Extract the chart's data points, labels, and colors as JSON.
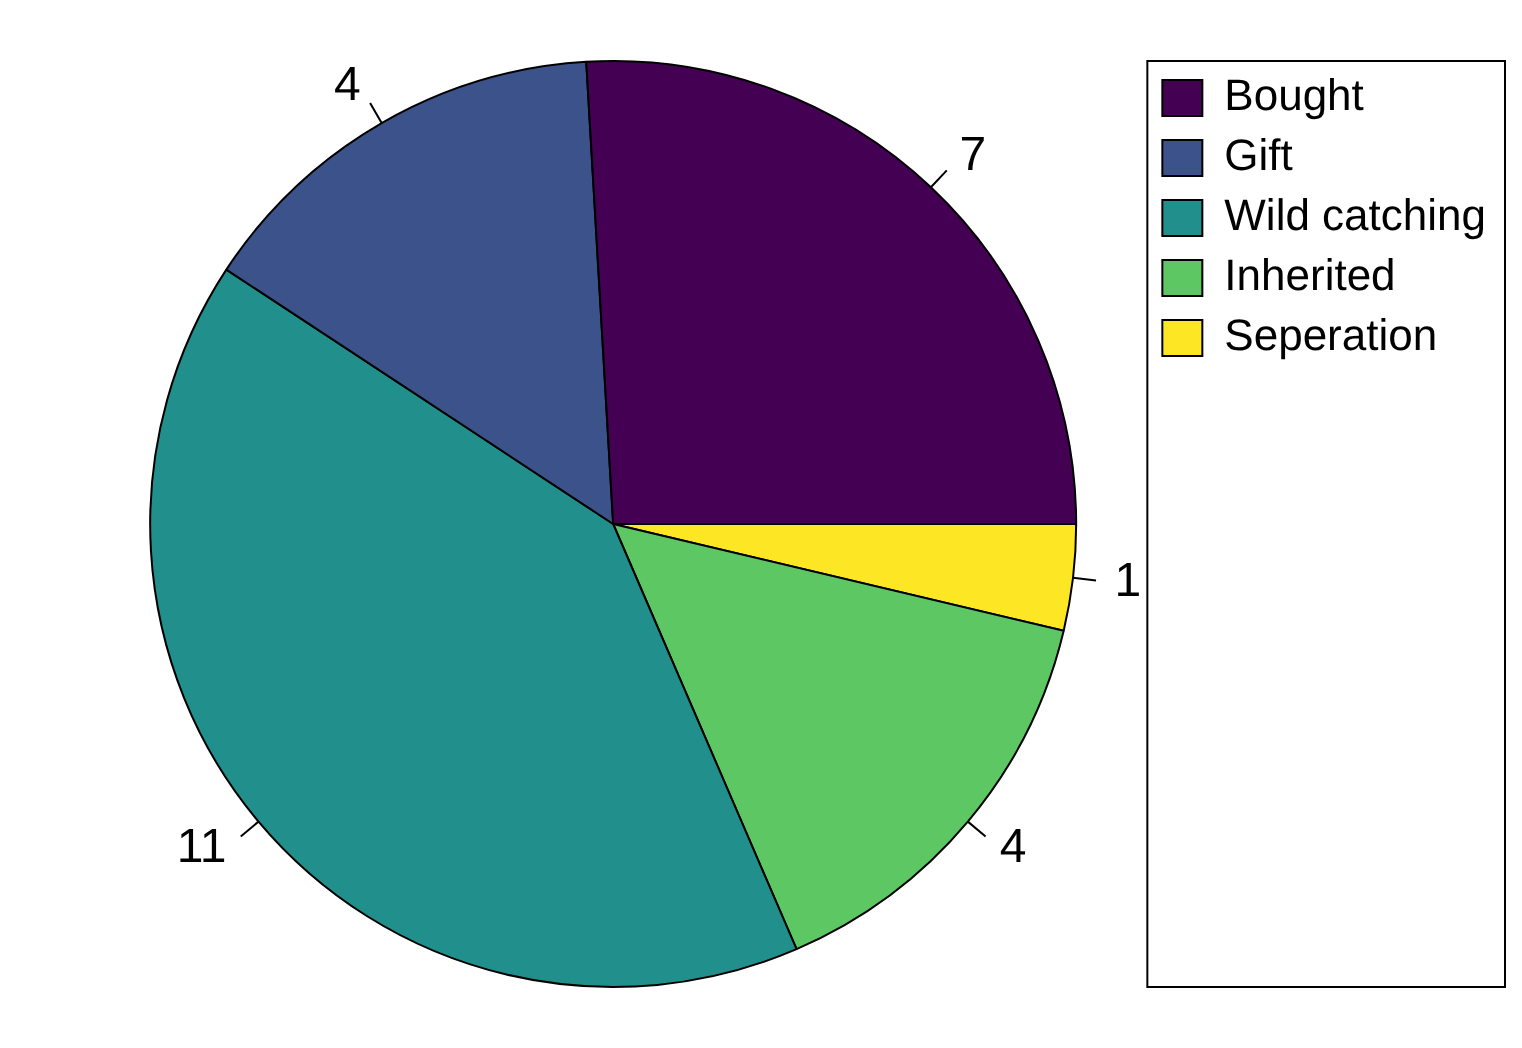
{
  "chart_data": {
    "type": "pie",
    "categories": [
      "Bought",
      "Gift",
      "Wild catching",
      "Inherited",
      "Seperation"
    ],
    "values": [
      7,
      4,
      11,
      4,
      1
    ],
    "colors": [
      "#440154",
      "#3b528b",
      "#21908c",
      "#5dc863",
      "#fde725"
    ],
    "data_labels": true,
    "legend": "top right"
  }
}
